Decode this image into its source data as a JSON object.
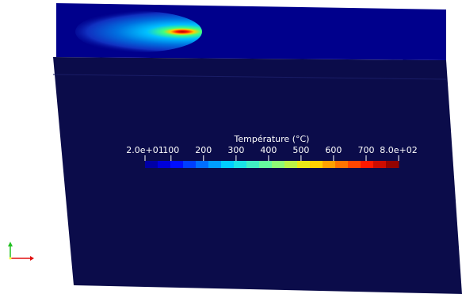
{
  "colorbar": {
    "title": "Température (°C)",
    "min_label": "2.0e+01",
    "max_label": "8.0e+02",
    "tick_labels": [
      "100",
      "200",
      "300",
      "400",
      "500",
      "600",
      "700"
    ],
    "range": [
      20,
      800
    ],
    "ticks": [
      100,
      200,
      300,
      400,
      500,
      600,
      700
    ]
  },
  "colors": {
    "body_face": "#0b0c4a",
    "top_face": "#00008c",
    "axis_x": "#e01010",
    "axis_y": "#20c020"
  }
}
